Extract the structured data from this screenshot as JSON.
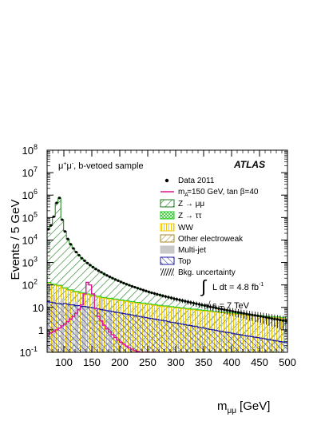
{
  "chart_data": {
    "type": "line",
    "title": "",
    "xlabel": "m",
    "xlabel_sub": "μμ",
    "xlabel_unit": "[GeV]",
    "ylabel": "Events / 5 GeV",
    "yscale": "log",
    "xlim": [
      70,
      500
    ],
    "ylim": [
      0.1,
      100000000
    ],
    "x_ticks": [
      "100",
      "150",
      "200",
      "250",
      "300",
      "350",
      "400",
      "450",
      "500"
    ],
    "y_ticks": [
      {
        "base": "10",
        "exp": "-1"
      },
      {
        "base": "1",
        "exp": ""
      },
      {
        "base": "10",
        "exp": ""
      },
      {
        "base": "10",
        "exp": "2"
      },
      {
        "base": "10",
        "exp": "3"
      },
      {
        "base": "10",
        "exp": "4"
      },
      {
        "base": "10",
        "exp": "5"
      },
      {
        "base": "10",
        "exp": "6"
      },
      {
        "base": "10",
        "exp": "7"
      },
      {
        "base": "10",
        "exp": "8"
      }
    ],
    "sample_label_prefix": "μ",
    "sample_label_sup1": "+",
    "sample_label_mid": "μ",
    "sample_label_sup2": "-",
    "sample_label_suffix": ", b-vetoed sample",
    "experiment": "ATLAS",
    "lumi_prefix": "L dt = 4.8 fb",
    "lumi_sup": "-1",
    "energy": "s = 7 TeV",
    "legend": {
      "data": "Data 2011",
      "signal": "m  =150 GeV, tan β=40",
      "signal_sub": "A",
      "zmumu": "Z → μμ",
      "ztautau": "Z → ττ",
      "ww": "WW",
      "ew": "Other electroweak",
      "multijet": "Multi-jet",
      "top": "Top",
      "unc": "Bkg. uncertainty"
    },
    "colors": {
      "zmumu": "#1a7a1a",
      "ztautau": "#22cc22",
      "ww": "#f0c800",
      "ew": "#a08a20",
      "multijet": "#c8c8c8",
      "top": "#1a1aa0",
      "signal": "#e0109a"
    },
    "series": [
      {
        "key": "data",
        "name": "Data 2011",
        "x": [
          72,
          77,
          82,
          87,
          92,
          97,
          102,
          107,
          112,
          117,
          122,
          127,
          132,
          137,
          142,
          147,
          152,
          157,
          162,
          167,
          172,
          177,
          182,
          187,
          192,
          197,
          202,
          207,
          212,
          217,
          222,
          227,
          232,
          237,
          242,
          247,
          252,
          257,
          262,
          267,
          272,
          277,
          282,
          287,
          292,
          297,
          302,
          307,
          312,
          317,
          322,
          327,
          332,
          337,
          342,
          347,
          352,
          357,
          362,
          367,
          372,
          377,
          382,
          387,
          392,
          397,
          402,
          407,
          412,
          417,
          422,
          427,
          432,
          437,
          442,
          447,
          452,
          457,
          462,
          467,
          472,
          477,
          482,
          487,
          492,
          497
        ],
        "y": [
          30000,
          45000,
          110000,
          450000,
          750000,
          80000,
          24000,
          11000,
          6500,
          4200,
          2900,
          2100,
          1550,
          1200,
          940,
          760,
          620,
          510,
          430,
          365,
          310,
          265,
          230,
          200,
          175,
          155,
          137,
          121,
          108,
          97,
          87,
          79,
          72,
          65,
          59,
          54,
          49,
          45,
          41.5,
          38.5,
          35.5,
          33,
          30.5,
          28.5,
          26.5,
          24.6,
          23,
          21.5,
          20.1,
          18.8,
          17.6,
          16.5,
          15.5,
          14.5,
          13.6,
          12.8,
          12,
          11.3,
          10.6,
          10,
          9.4,
          8.9,
          8.4,
          7.9,
          7.5,
          7.1,
          6.7,
          6.3,
          6,
          5.7,
          5.4,
          5.1,
          4.8,
          4.6,
          4.4,
          4.2,
          4,
          3.8,
          3.6,
          3.4,
          3.2,
          3.05,
          2.9,
          2.75,
          2.6,
          2.5
        ]
      },
      {
        "key": "top",
        "name": "Top",
        "x": [
          72,
          77,
          82,
          87,
          92,
          97,
          102,
          107,
          112,
          117,
          122,
          127,
          132,
          137,
          142,
          147,
          152,
          157,
          162,
          167,
          172,
          177,
          182,
          187,
          192,
          197,
          202,
          207,
          212,
          217,
          222,
          227,
          232,
          237,
          242,
          247,
          252,
          257,
          262,
          267,
          272,
          277,
          282,
          287,
          292,
          297,
          302,
          307,
          312,
          317,
          322,
          327,
          332,
          337,
          342,
          347,
          352,
          357,
          362,
          367,
          372,
          377,
          382,
          387,
          392,
          397,
          402,
          407,
          412,
          417,
          422,
          427,
          432,
          437,
          442,
          447,
          452,
          457,
          462,
          467,
          472,
          477,
          482,
          487,
          492,
          497
        ],
        "y": [
          18,
          17,
          16,
          15,
          15,
          14,
          15,
          14,
          13,
          13,
          12,
          12,
          11,
          11,
          10.5,
          10,
          9.5,
          9,
          8.5,
          8,
          7.6,
          7.2,
          6.9,
          6.5,
          6.2,
          5.9,
          5.6,
          5.3,
          5,
          4.8,
          4.6,
          4.3,
          4.1,
          3.9,
          3.7,
          3.5,
          3.3,
          3.2,
          3,
          2.9,
          2.7,
          2.6,
          2.5,
          2.3,
          2.2,
          2.1,
          2,
          1.9,
          1.8,
          1.7,
          1.6,
          1.55,
          1.45,
          1.4,
          1.3,
          1.25,
          1.2,
          1.1,
          1.05,
          1,
          0.95,
          0.9,
          0.85,
          0.8,
          0.77,
          0.73,
          0.7,
          0.66,
          0.63,
          0.6,
          0.57,
          0.54,
          0.52,
          0.5,
          0.47,
          0.45,
          0.43,
          0.41,
          0.39,
          0.37,
          0.35,
          0.33,
          0.32,
          0.3,
          0.29,
          0.27
        ]
      },
      {
        "key": "ww",
        "name": "WW",
        "x": [
          72,
          82,
          92,
          102,
          112,
          122,
          132,
          142,
          152,
          162,
          172,
          182,
          192,
          202,
          212,
          222,
          232,
          242,
          252,
          262,
          272,
          282,
          292,
          302,
          312,
          322,
          332,
          342,
          352,
          362,
          372,
          382,
          392,
          402,
          412,
          422,
          432,
          442,
          452,
          462,
          472,
          482,
          492
        ],
        "y": [
          120,
          100,
          90,
          70,
          56,
          48,
          42,
          37,
          33,
          29,
          26,
          24,
          22,
          20,
          18.5,
          17,
          15.5,
          14.5,
          13.5,
          12.5,
          11.5,
          10.8,
          10.1,
          9.5,
          8.9,
          8.3,
          7.8,
          7.3,
          6.9,
          6.5,
          6.1,
          5.8,
          5.5,
          5.2,
          4.9,
          4.6,
          4.4,
          4.2,
          4,
          3.8,
          3.6,
          3.45,
          3.3
        ]
      },
      {
        "key": "signal",
        "name": "m  =150 GeV, tan β=40",
        "x": [
          72,
          77,
          82,
          87,
          92,
          97,
          102,
          107,
          112,
          117,
          122,
          127,
          132,
          137,
          142,
          147,
          152,
          157,
          162,
          167,
          172,
          177,
          182,
          187,
          192,
          197,
          202,
          207,
          212,
          217,
          222,
          227,
          232,
          237,
          242,
          247,
          252,
          257,
          262,
          267
        ],
        "y": [
          0.6,
          0.75,
          0.85,
          1,
          1.2,
          1.5,
          1.8,
          2.3,
          3,
          4,
          5.5,
          8,
          13,
          40,
          130,
          100,
          40,
          9,
          4,
          2.5,
          1.6,
          1.1,
          0.8,
          0.6,
          0.45,
          0.35,
          0.28,
          0.23,
          0.19,
          0.16,
          0.14,
          0.12,
          0.11,
          0.1,
          0.1,
          0.1,
          0.1,
          0.1,
          0.1,
          0.1
        ]
      }
    ],
    "multijet_bins": [
      {
        "x": 72,
        "y": 45
      },
      {
        "x": 82,
        "y": 30
      },
      {
        "x": 97,
        "y": 25
      },
      {
        "x": 107,
        "y": 14
      },
      {
        "x": 122,
        "y": 18
      },
      {
        "x": 137,
        "y": 12
      },
      {
        "x": 152,
        "y": 10
      },
      {
        "x": 167,
        "y": 30
      },
      {
        "x": 182,
        "y": 8
      }
    ]
  }
}
